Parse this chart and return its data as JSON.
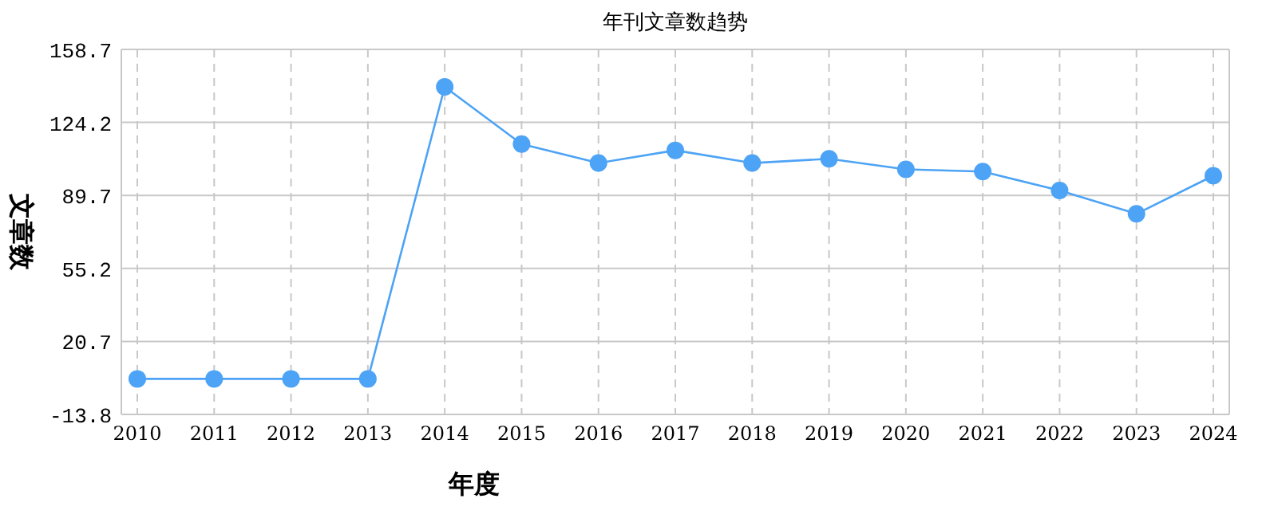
{
  "chart_data": {
    "type": "line",
    "title": "年刊文章数趋势",
    "xlabel": "年度",
    "ylabel": "文章数",
    "categories": [
      "2010",
      "2011",
      "2012",
      "2013",
      "2014",
      "2015",
      "2016",
      "2017",
      "2018",
      "2019",
      "2020",
      "2021",
      "2022",
      "2023",
      "2024"
    ],
    "series": [
      {
        "color": "#4da3f5",
        "values": [
          3,
          3,
          3,
          3,
          141,
          114,
          105,
          111,
          105,
          107,
          102,
          101,
          92,
          81,
          99
        ]
      }
    ],
    "ylim": [
      -13.8,
      158.7
    ],
    "yticks": [
      -13.8,
      20.7,
      55.2,
      89.7,
      124.2,
      158.7
    ],
    "grid": true,
    "marker": "circle",
    "line_style": "solid"
  }
}
